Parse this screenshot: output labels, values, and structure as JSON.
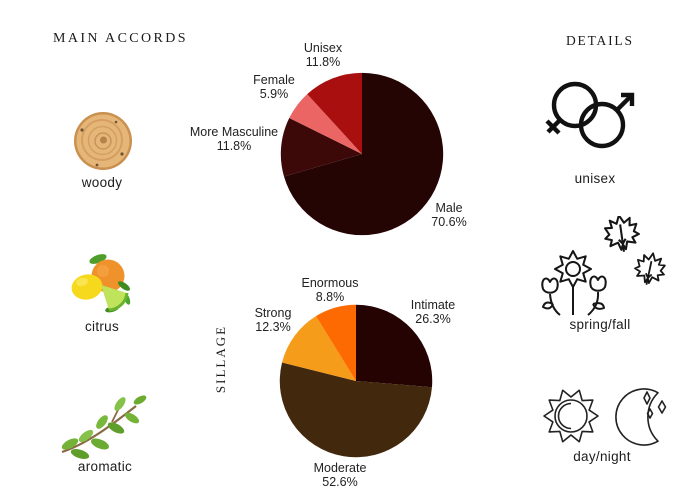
{
  "accords_section": {
    "header": "MAIN ACCORDS",
    "items": [
      {
        "label": "woody",
        "icon": "wood-slice-icon"
      },
      {
        "label": "citrus",
        "icon": "citrus-fruits-icon"
      },
      {
        "label": "aromatic",
        "icon": "herb-sprig-icon"
      }
    ]
  },
  "details_section": {
    "header": "DETAILS",
    "items": [
      {
        "label": "unisex",
        "icon": "gender-symbols-icon"
      },
      {
        "label": "spring/fall",
        "icon": "flowers-maple-leaves-icon"
      },
      {
        "label": "day/night",
        "icon": "sun-moon-icon"
      }
    ]
  },
  "chart_data": [
    {
      "type": "pie",
      "name": "gender-pie",
      "legend": "none",
      "start_angle_deg": 0,
      "direction": "clockwise",
      "slices": [
        {
          "label": "Male",
          "pct": "70.6%",
          "value": 70.6,
          "color": "#250404"
        },
        {
          "label": "More Masculine",
          "pct": "11.8%",
          "value": 11.8,
          "color": "#3d0808"
        },
        {
          "label": "Female",
          "pct": "5.9%",
          "value": 5.9,
          "color": "#eb6565"
        },
        {
          "label": "Unisex",
          "pct": "11.8%",
          "value": 11.8,
          "color": "#a80f0e"
        }
      ]
    },
    {
      "type": "pie",
      "name": "sillage-pie",
      "axis_label": "SILLAGE",
      "legend": "none",
      "start_angle_deg": 0,
      "direction": "clockwise",
      "slices": [
        {
          "label": "Intimate",
          "pct": "26.3%",
          "value": 26.3,
          "color": "#240302"
        },
        {
          "label": "Moderate",
          "pct": "52.6%",
          "value": 52.6,
          "color": "#42290e"
        },
        {
          "label": "Strong",
          "pct": "12.3%",
          "value": 12.3,
          "color": "#f59c1a"
        },
        {
          "label": "Enormous",
          "pct": "8.8%",
          "value": 8.8,
          "color": "#fe6a02"
        }
      ]
    }
  ]
}
